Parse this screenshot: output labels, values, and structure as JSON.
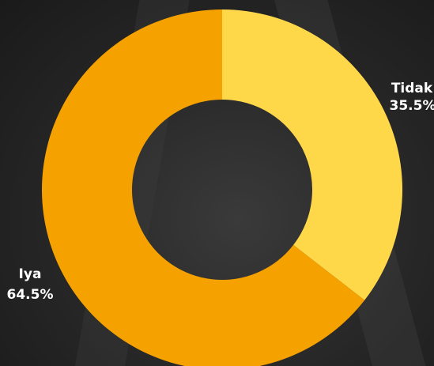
{
  "chart_data": {
    "type": "donut",
    "categories": [
      "Tidak",
      "Iya"
    ],
    "values": [
      35.5,
      64.5
    ],
    "value_labels": [
      "35.5%",
      "64.5%"
    ],
    "colors": [
      "#ffd84a",
      "#f5a100"
    ]
  }
}
